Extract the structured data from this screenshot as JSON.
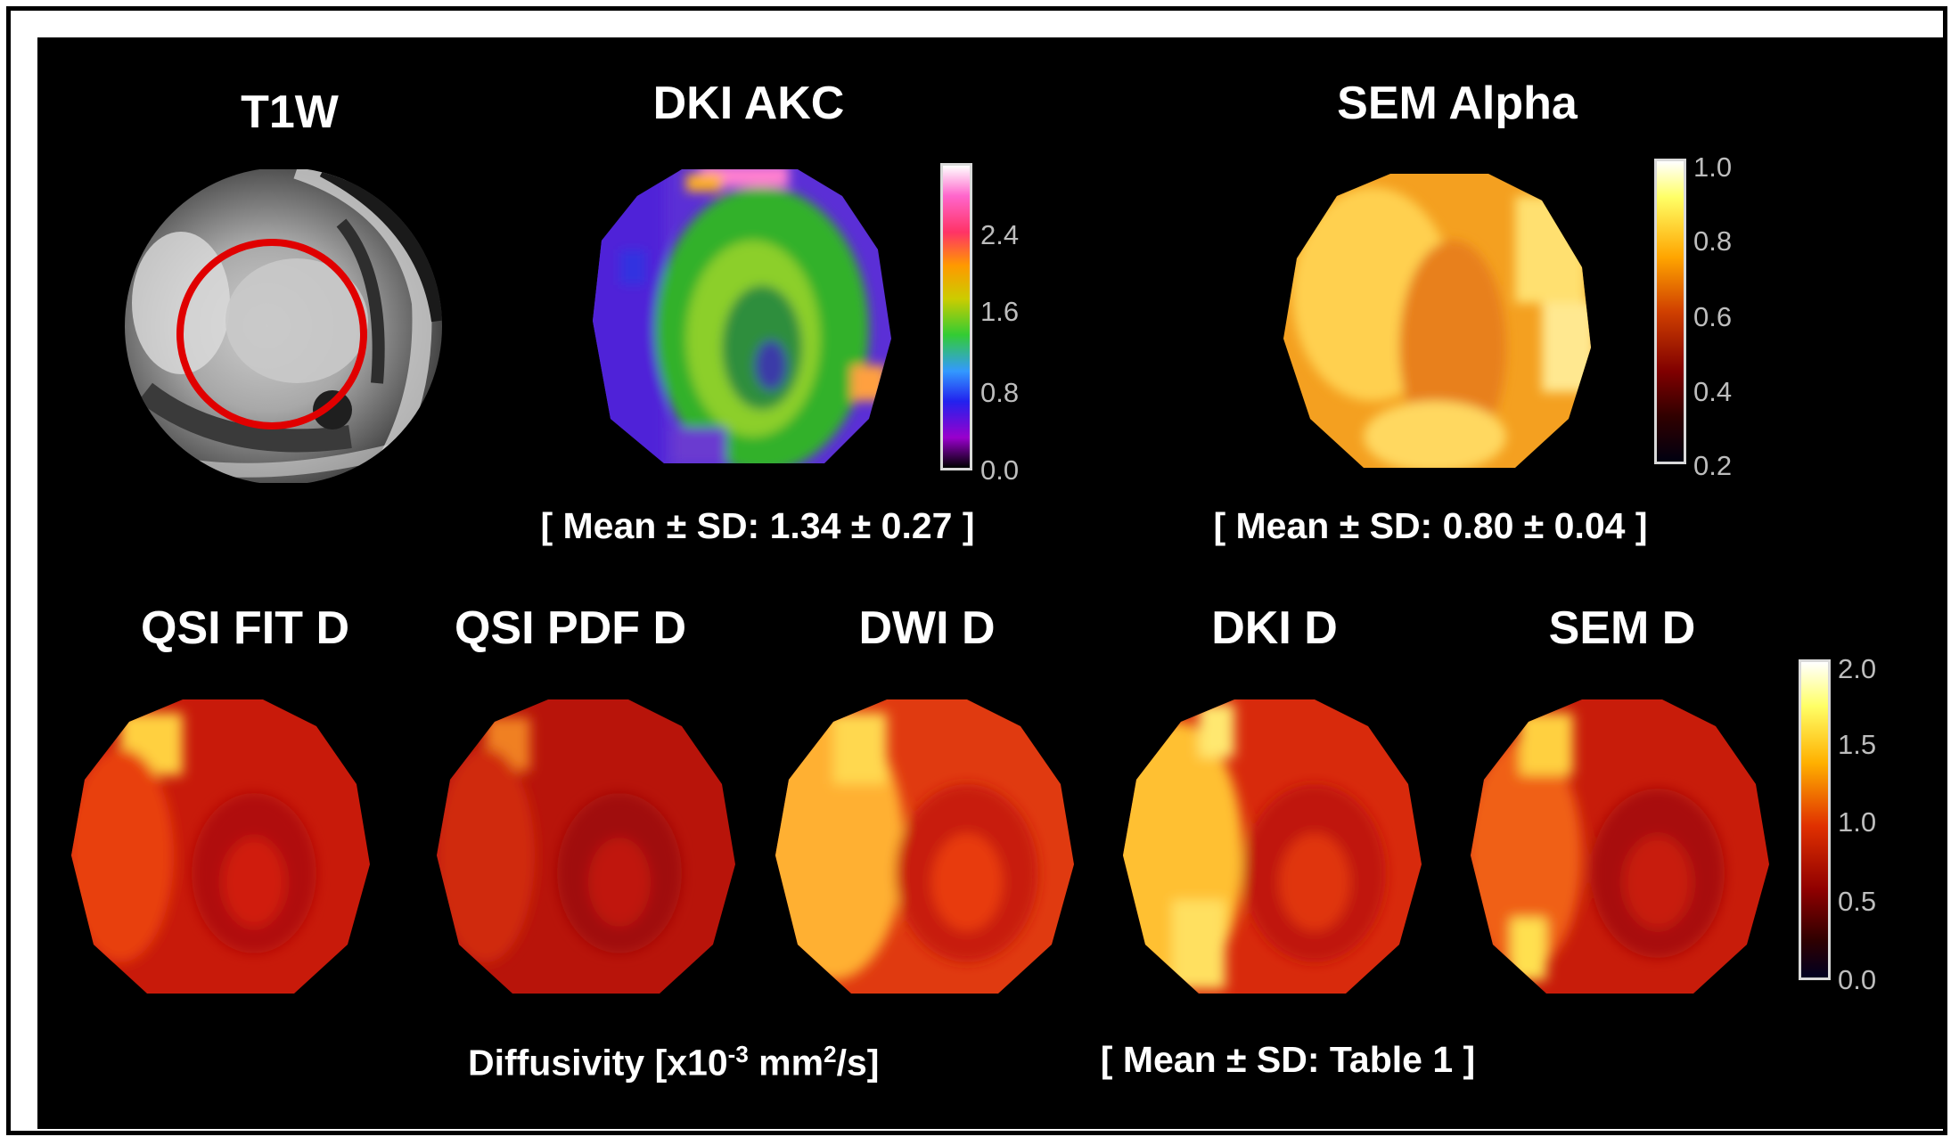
{
  "top_titles": {
    "t1w": "T1W",
    "dki_akc": "DKI AKC",
    "sem_alpha": "SEM Alpha"
  },
  "top_stats": {
    "dki_akc": "[ Mean ± SD: 1.34 ± 0.27 ]",
    "sem_alpha": "[ Mean ± SD: 0.80 ± 0.04 ]"
  },
  "bottom_titles": [
    "QSI FIT D",
    "QSI PDF D",
    "DWI D",
    "DKI D",
    "SEM D"
  ],
  "colorbars": {
    "akc_ticks": [
      "2.4",
      "1.6",
      "0.8",
      "0.0"
    ],
    "alpha_ticks": [
      "1.0",
      "0.8",
      "0.6",
      "0.4",
      "0.2"
    ],
    "diffusivity_ticks": [
      "2.0",
      "1.5",
      "1.0",
      "0.5",
      "0.0"
    ]
  },
  "footer": {
    "diffusivity_prefix": "Diffusivity  [x10",
    "diffusivity_exp": "-3",
    "diffusivity_mid": " mm",
    "diffusivity_sq": "2",
    "diffusivity_suffix": "/s]",
    "stat": "[ Mean ± SD: Table 1 ]"
  },
  "colors": {
    "background": "#000000",
    "roi_circle": "#e00000",
    "text": "#ffffff"
  }
}
